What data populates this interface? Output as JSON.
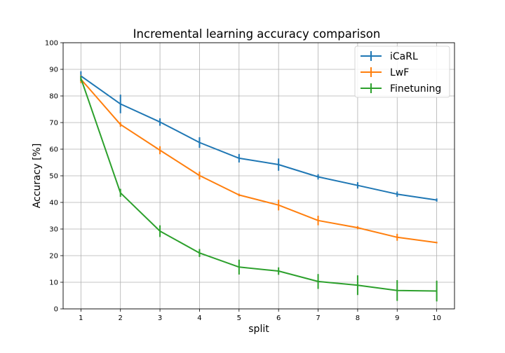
{
  "chart_data": {
    "type": "line",
    "title": "Incremental learning accuracy comparison",
    "xlabel": "split",
    "ylabel": "Accuracy [%]",
    "x": [
      1,
      2,
      3,
      4,
      5,
      6,
      7,
      8,
      9,
      10
    ],
    "xticks": [
      "1",
      "2",
      "3",
      "4",
      "5",
      "6",
      "7",
      "8",
      "9",
      "10"
    ],
    "ylim": [
      0,
      100
    ],
    "yticks": [
      "0",
      "10",
      "20",
      "30",
      "40",
      "50",
      "60",
      "70",
      "80",
      "90",
      "100"
    ],
    "grid": true,
    "legend_position": "upper right",
    "series": [
      {
        "name": "iCaRL",
        "color": "#1f77b4",
        "values": [
          87.5,
          77.0,
          70.2,
          62.5,
          56.6,
          54.2,
          49.6,
          46.4,
          43.1,
          40.9
        ],
        "errors": [
          1.8,
          3.5,
          1.4,
          2.0,
          1.6,
          2.3,
          1.0,
          1.2,
          1.0,
          0.6
        ]
      },
      {
        "name": "LwF",
        "color": "#ff7f0e",
        "values": [
          86.3,
          69.3,
          59.6,
          50.1,
          42.8,
          39.0,
          33.2,
          30.5,
          26.9,
          24.9
        ],
        "errors": [
          1.5,
          0.9,
          1.5,
          1.5,
          0.5,
          2.0,
          1.8,
          0.6,
          1.3,
          0.3
        ]
      },
      {
        "name": "Finetuning",
        "color": "#2ca02c",
        "values": [
          86.6,
          43.6,
          29.2,
          21.0,
          15.7,
          14.2,
          10.3,
          8.9,
          6.9,
          6.7
        ],
        "errors": [
          1.0,
          1.5,
          2.2,
          1.5,
          2.8,
          1.4,
          2.8,
          3.7,
          3.9,
          3.9
        ]
      }
    ]
  }
}
